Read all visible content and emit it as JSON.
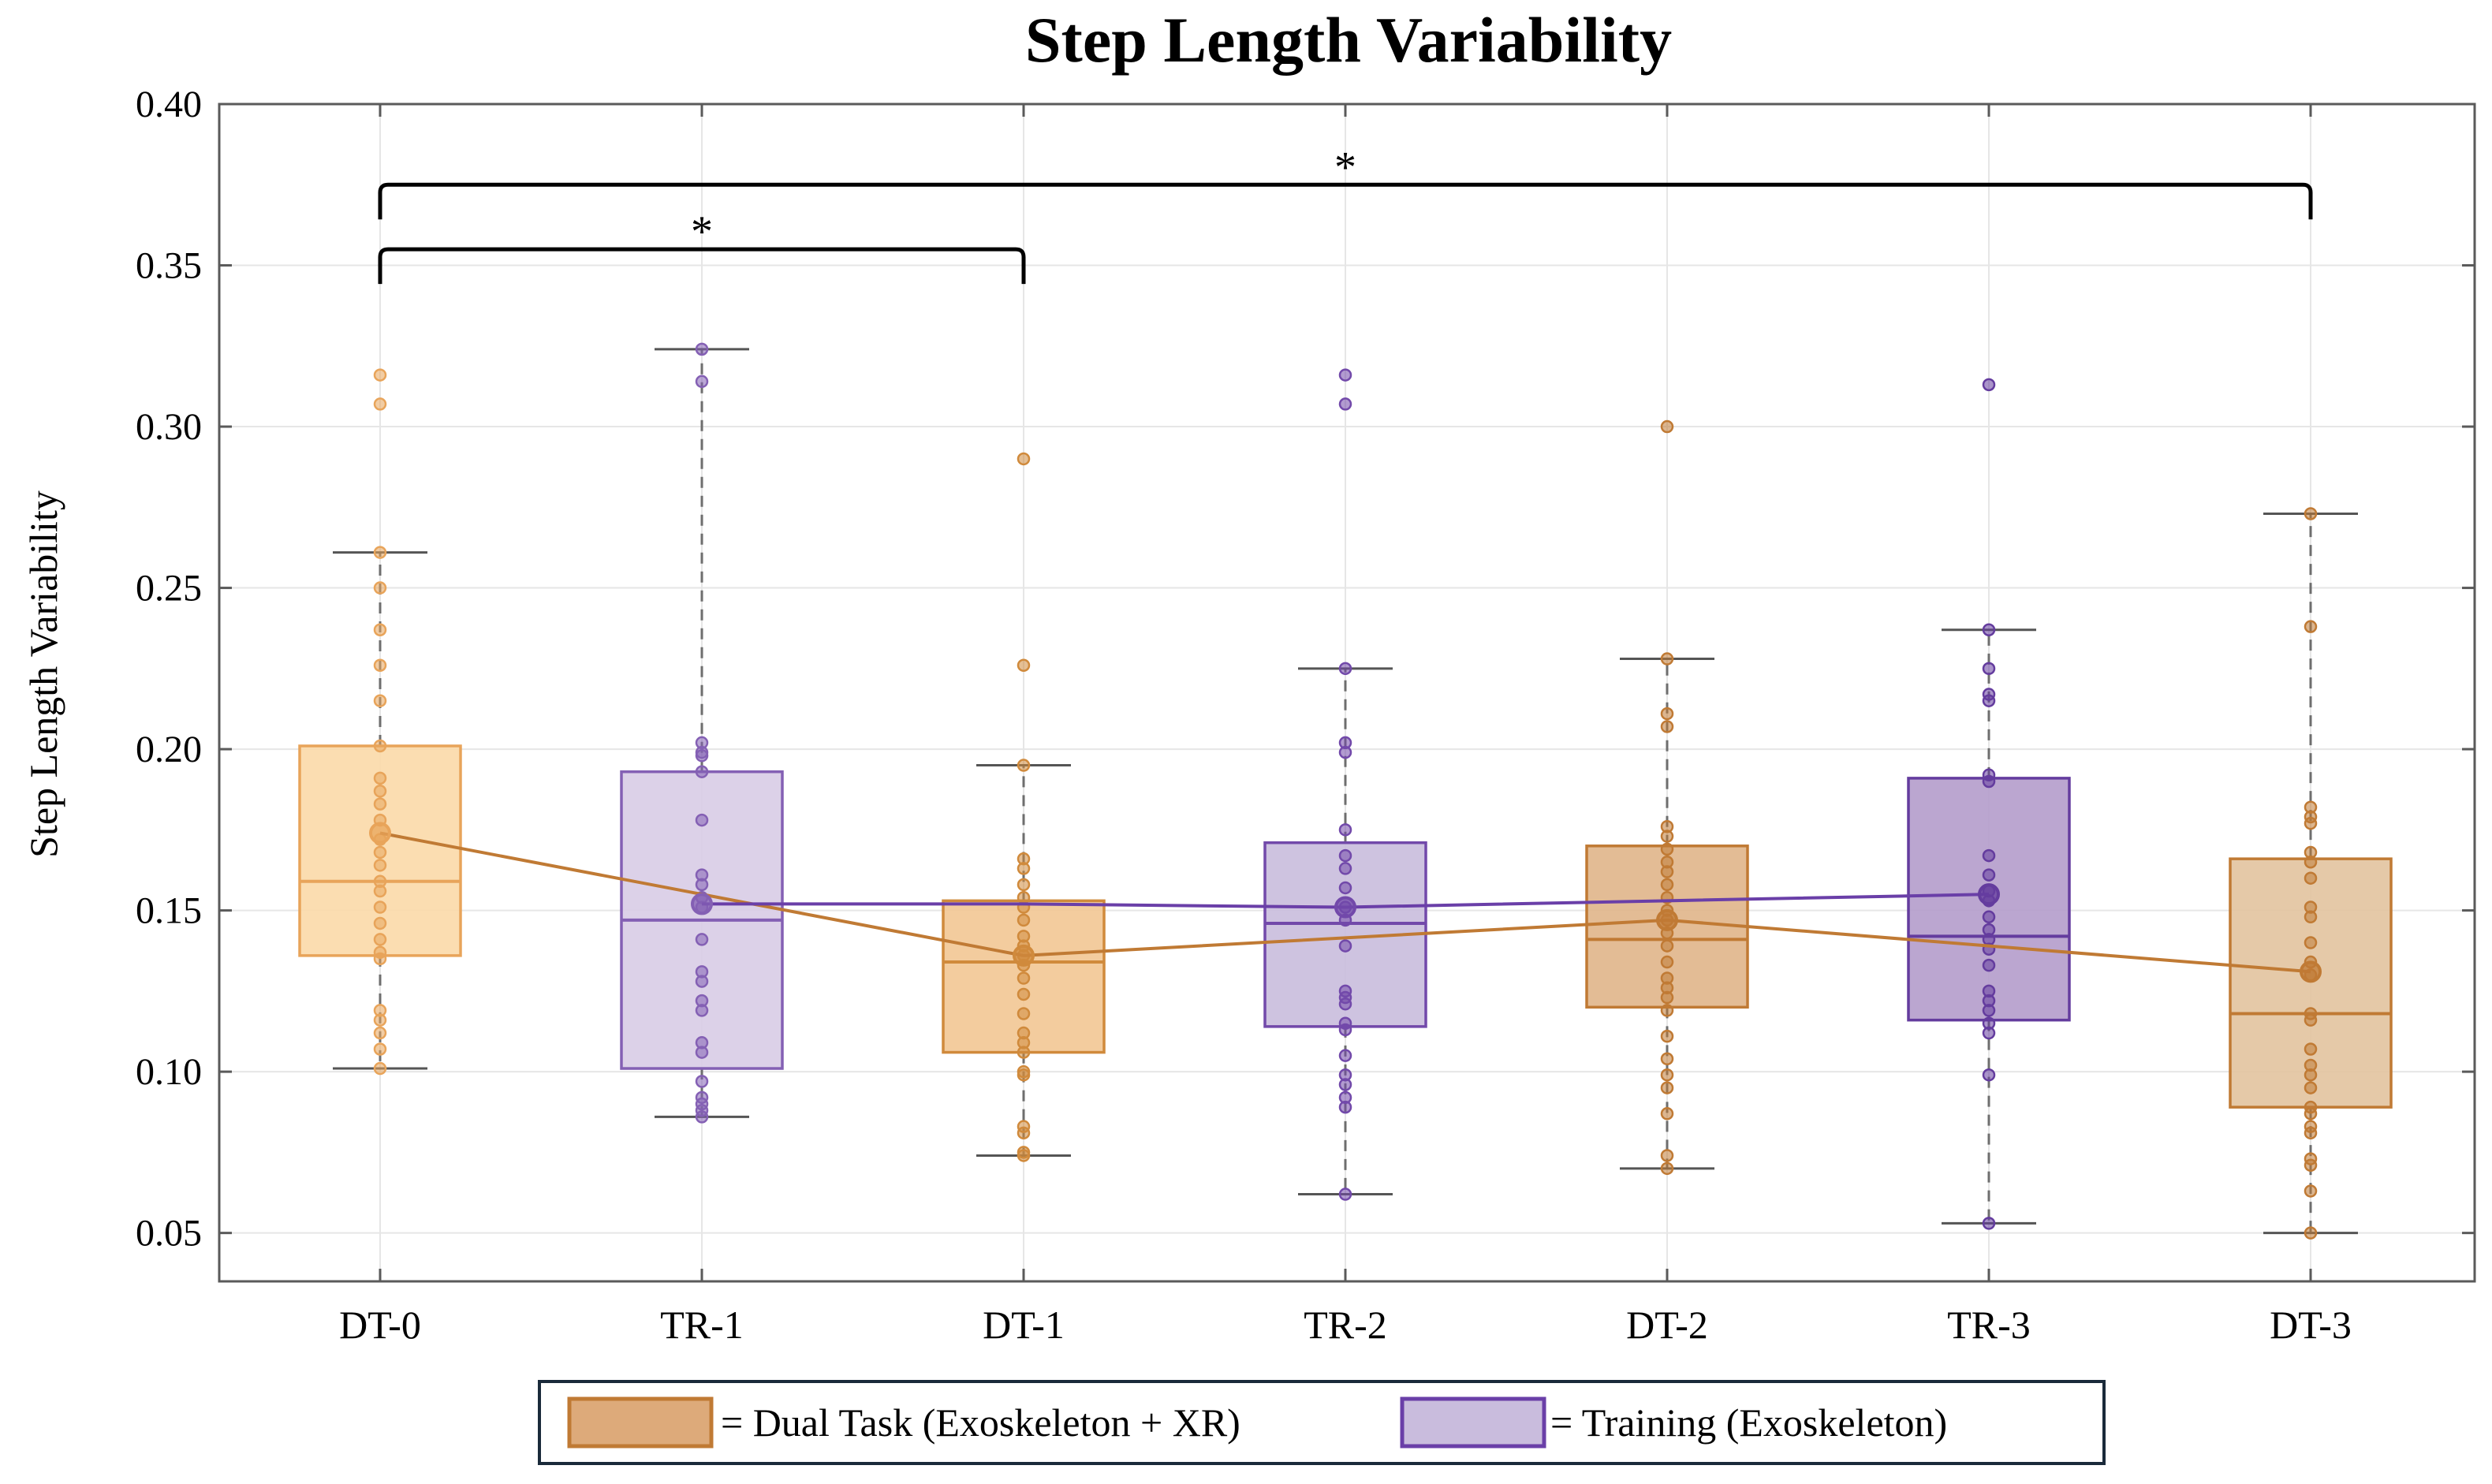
{
  "chart_data": {
    "type": "box",
    "title": "Step Length Variability",
    "ylabel": "Step Length Variability",
    "xlabel": "",
    "ylim": [
      0.035,
      0.4
    ],
    "yticks": [
      0.05,
      0.1,
      0.15,
      0.2,
      0.25,
      0.3,
      0.35,
      0.4
    ],
    "ytick_labels": [
      "0.05",
      "0.10",
      "0.15",
      "0.20",
      "0.25",
      "0.30",
      "0.35",
      "0.40"
    ],
    "grid": true,
    "categories": [
      "DT-0",
      "TR-1",
      "DT-1",
      "TR-2",
      "DT-2",
      "TR-3",
      "DT-3"
    ],
    "groups": [
      {
        "category": "DT-0",
        "condition": "Dual Task",
        "whisker_low": 0.101,
        "q1": 0.136,
        "median": 0.159,
        "q3": 0.201,
        "whisker_high": 0.261,
        "mean": 0.174,
        "fill": "#FBD9A9",
        "stroke": "#E8A45A",
        "points": [
          0.316,
          0.307,
          0.261,
          0.25,
          0.237,
          0.226,
          0.215,
          0.201,
          0.191,
          0.187,
          0.183,
          0.178,
          0.172,
          0.168,
          0.164,
          0.159,
          0.156,
          0.151,
          0.146,
          0.141,
          0.137,
          0.135,
          0.119,
          0.116,
          0.112,
          0.107,
          0.101
        ]
      },
      {
        "category": "TR-1",
        "condition": "Training",
        "whisker_low": 0.086,
        "q1": 0.101,
        "median": 0.147,
        "q3": 0.193,
        "whisker_high": 0.324,
        "mean": 0.152,
        "fill": "#D8CCE6",
        "stroke": "#8460B4",
        "points": [
          0.324,
          0.314,
          0.202,
          0.199,
          0.198,
          0.193,
          0.178,
          0.161,
          0.158,
          0.154,
          0.151,
          0.141,
          0.131,
          0.128,
          0.122,
          0.119,
          0.109,
          0.106,
          0.097,
          0.092,
          0.09,
          0.088,
          0.086
        ]
      },
      {
        "category": "DT-1",
        "condition": "Dual Task",
        "whisker_low": 0.074,
        "q1": 0.106,
        "median": 0.134,
        "q3": 0.153,
        "whisker_high": 0.195,
        "mean": 0.136,
        "fill": "#F2C693",
        "stroke": "#D08A3C",
        "points": [
          0.29,
          0.226,
          0.195,
          0.166,
          0.163,
          0.158,
          0.154,
          0.151,
          0.147,
          0.142,
          0.139,
          0.136,
          0.133,
          0.129,
          0.124,
          0.118,
          0.112,
          0.109,
          0.106,
          0.1,
          0.099,
          0.083,
          0.081,
          0.075,
          0.074
        ]
      },
      {
        "category": "TR-2",
        "condition": "Training",
        "whisker_low": 0.062,
        "q1": 0.114,
        "median": 0.146,
        "q3": 0.171,
        "whisker_high": 0.225,
        "mean": 0.151,
        "fill": "#C9BCDD",
        "stroke": "#7249AA",
        "points": [
          0.316,
          0.307,
          0.225,
          0.202,
          0.199,
          0.175,
          0.167,
          0.163,
          0.157,
          0.151,
          0.147,
          0.139,
          0.125,
          0.123,
          0.121,
          0.115,
          0.113,
          0.105,
          0.099,
          0.096,
          0.092,
          0.089,
          0.062
        ]
      },
      {
        "category": "DT-2",
        "condition": "Dual Task",
        "whisker_low": 0.07,
        "q1": 0.12,
        "median": 0.141,
        "q3": 0.17,
        "whisker_high": 0.228,
        "mean": 0.147,
        "fill": "#E0B58A",
        "stroke": "#C07A34",
        "points": [
          0.3,
          0.228,
          0.211,
          0.207,
          0.176,
          0.173,
          0.169,
          0.165,
          0.162,
          0.158,
          0.154,
          0.15,
          0.147,
          0.143,
          0.139,
          0.134,
          0.129,
          0.126,
          0.123,
          0.119,
          0.111,
          0.104,
          0.099,
          0.095,
          0.087,
          0.074,
          0.07
        ]
      },
      {
        "category": "TR-3",
        "condition": "Training",
        "whisker_low": 0.053,
        "q1": 0.116,
        "median": 0.142,
        "q3": 0.191,
        "whisker_high": 0.237,
        "mean": 0.155,
        "fill": "#B49CCB",
        "stroke": "#643C9E",
        "points": [
          0.313,
          0.237,
          0.225,
          0.217,
          0.215,
          0.192,
          0.19,
          0.167,
          0.161,
          0.156,
          0.153,
          0.148,
          0.144,
          0.141,
          0.138,
          0.133,
          0.125,
          0.122,
          0.119,
          0.115,
          0.112,
          0.099,
          0.053
        ]
      },
      {
        "category": "DT-3",
        "condition": "Dual Task",
        "whisker_low": 0.05,
        "q1": 0.089,
        "median": 0.118,
        "q3": 0.166,
        "whisker_high": 0.273,
        "mean": 0.131,
        "fill": "#E2C39E",
        "stroke": "#C07A34",
        "points": [
          0.273,
          0.238,
          0.182,
          0.179,
          0.177,
          0.168,
          0.165,
          0.16,
          0.151,
          0.148,
          0.14,
          0.134,
          0.13,
          0.118,
          0.116,
          0.107,
          0.102,
          0.099,
          0.095,
          0.089,
          0.087,
          0.083,
          0.081,
          0.073,
          0.071,
          0.063,
          0.05
        ]
      }
    ],
    "mean_lines": [
      {
        "condition": "Dual Task",
        "color": "#C07A34",
        "categories": [
          "DT-0",
          "DT-1",
          "DT-2",
          "DT-3"
        ],
        "values": [
          0.174,
          0.136,
          0.147,
          0.131
        ]
      },
      {
        "condition": "Training",
        "color": "#6A3FA8",
        "categories": [
          "TR-1",
          "DT-1",
          "TR-2",
          "DT-2",
          "TR-3"
        ],
        "values": [
          0.152,
          0.152,
          0.151,
          0.153,
          0.155
        ]
      }
    ],
    "significance": [
      {
        "from": "DT-0",
        "to": "DT-1",
        "y": 0.355,
        "label": "*"
      },
      {
        "from": "DT-0",
        "to": "DT-3",
        "y": 0.375,
        "label": "*"
      }
    ],
    "legend": {
      "position": "bottom-center",
      "entries": [
        {
          "label": "= Dual Task (Exoskeleton + XR)",
          "fill": "#DDAA7A",
          "stroke": "#C07A34"
        },
        {
          "label": "= Training (Exoskeleton)",
          "fill": "#C9BCDD",
          "stroke": "#6A3FA8"
        }
      ]
    }
  }
}
